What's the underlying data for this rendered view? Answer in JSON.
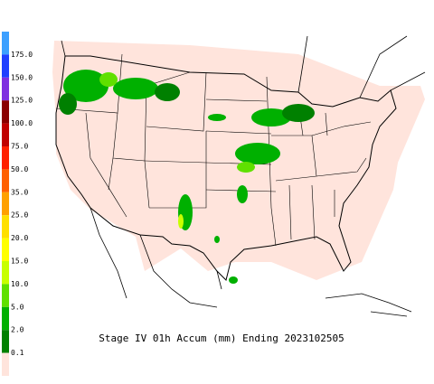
{
  "legend": {
    "items": [
      {
        "label": "175.0",
        "color": "#3ca0ff"
      },
      {
        "label": "150.0",
        "color": "#2040ff"
      },
      {
        "label": "125.0",
        "color": "#7f30e0"
      },
      {
        "label": "100.0",
        "color": "#8a0000"
      },
      {
        "label": "75.0",
        "color": "#c00000"
      },
      {
        "label": "50.0",
        "color": "#ff2000"
      },
      {
        "label": "35.0",
        "color": "#ff6000"
      },
      {
        "label": "25.0",
        "color": "#ffa000"
      },
      {
        "label": "20.0",
        "color": "#ffe000"
      },
      {
        "label": "15.0",
        "color": "#ffff00"
      },
      {
        "label": "10.0",
        "color": "#c8ff00"
      },
      {
        "label": "5.0",
        "color": "#60e000"
      },
      {
        "label": "2.0",
        "color": "#00b000"
      },
      {
        "label": "0.1",
        "color": "#008000"
      }
    ],
    "base_color": "#ffe4dc"
  },
  "caption": "Stage IV 01h Accum (mm) Ending 2023102505"
}
